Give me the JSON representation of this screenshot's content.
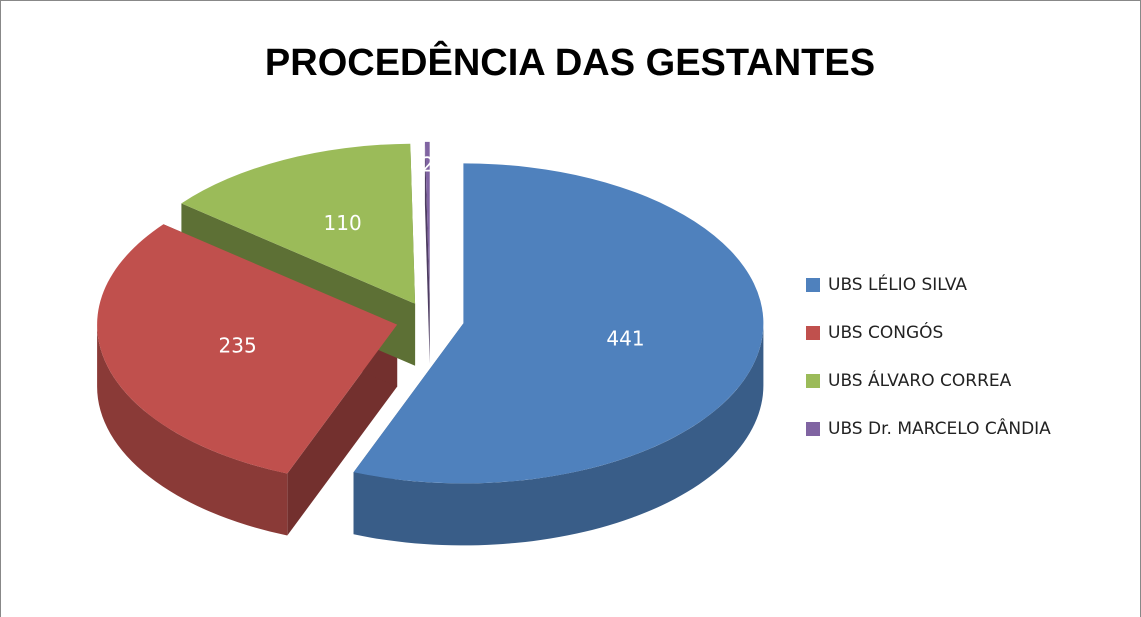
{
  "chart_data": {
    "type": "pie",
    "title": "PROCEDÊNCIA DAS GESTANTES",
    "categories": [
      "UBS LÉLIO SILVA",
      "UBS CONGÓS",
      "UBS ÁLVARO CORREA",
      "UBS Dr. MARCELO CÂNDIA"
    ],
    "values": [
      441,
      235,
      110,
      2
    ],
    "colors": [
      "#4f81bd",
      "#c0504d",
      "#9bbb59",
      "#8064a2"
    ],
    "legend": "right"
  }
}
